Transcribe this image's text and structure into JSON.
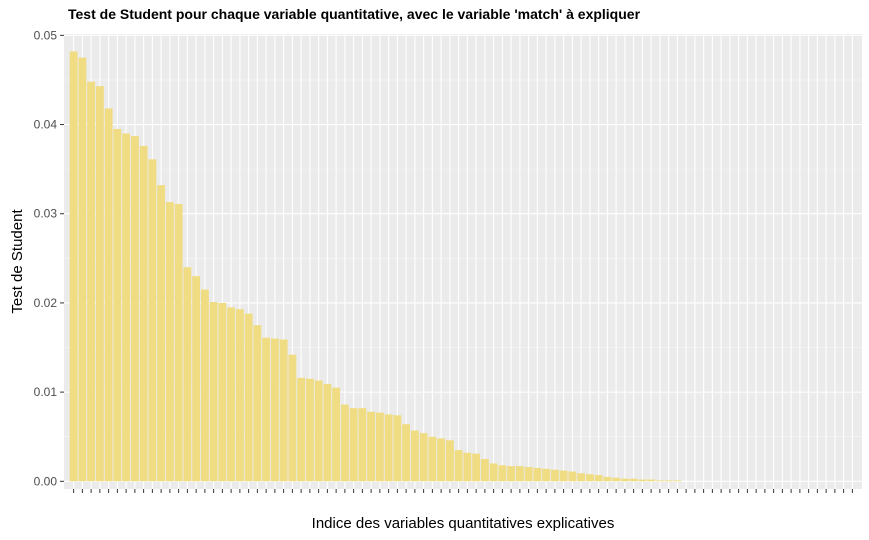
{
  "chart_data": {
    "type": "bar",
    "title": "Test de Student pour chaque variable quantitative, avec le variable 'match' à expliquer",
    "xlabel": "Indice des variables quantitatives explicatives",
    "ylabel": "Test de Student",
    "ylim": [
      0,
      0.05
    ],
    "yticks": [
      "0.00",
      "0.01",
      "0.02",
      "0.03",
      "0.04",
      "0.05"
    ],
    "tick_values": [
      0,
      0.01,
      0.02,
      0.03,
      0.04,
      0.05
    ],
    "grid": true,
    "bar_color": "#f0dc82",
    "panel_background": "#ebebeb",
    "values": [
      0.0482,
      0.0475,
      0.0448,
      0.0443,
      0.0418,
      0.0395,
      0.039,
      0.0387,
      0.0376,
      0.0361,
      0.0332,
      0.0313,
      0.0311,
      0.024,
      0.023,
      0.0215,
      0.0201,
      0.02,
      0.0195,
      0.0193,
      0.0188,
      0.0175,
      0.0161,
      0.016,
      0.0159,
      0.0142,
      0.0116,
      0.0115,
      0.0113,
      0.0109,
      0.0105,
      0.0086,
      0.0082,
      0.0082,
      0.0078,
      0.0077,
      0.0075,
      0.0074,
      0.0064,
      0.0057,
      0.0054,
      0.005,
      0.0048,
      0.0046,
      0.0035,
      0.0032,
      0.0031,
      0.0025,
      0.002,
      0.0018,
      0.0017,
      0.0017,
      0.0016,
      0.0015,
      0.0014,
      0.0013,
      0.0012,
      0.0011,
      0.0009,
      0.0008,
      0.0007,
      0.0005,
      0.0004,
      0.0003,
      0.0003,
      0.0002,
      0.0002,
      0.0001,
      0.0001,
      0.0001,
      0,
      0,
      0,
      0,
      0,
      0,
      0,
      0,
      0,
      0,
      0,
      0,
      0,
      0,
      0,
      0,
      0,
      0,
      0,
      0
    ]
  }
}
